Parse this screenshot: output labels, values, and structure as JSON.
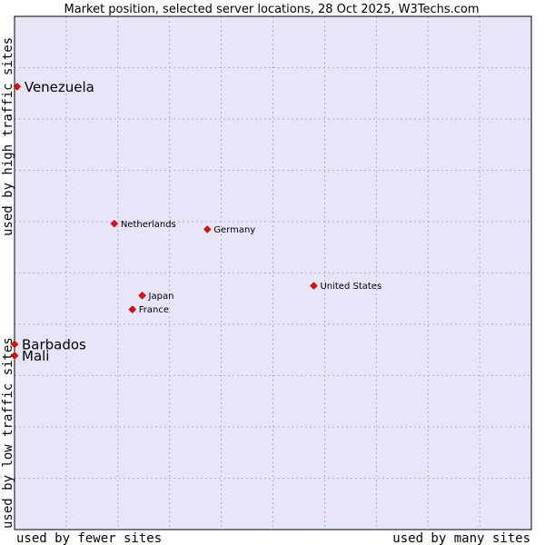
{
  "chart_data": {
    "type": "scatter",
    "title": "Market position, selected server locations, 28 Oct 2025, W3Techs.com",
    "xlabel_low": "used by fewer sites",
    "xlabel_high": "used by many sites",
    "ylabel_low": "used by low traffic sites",
    "ylabel_high": "used by high traffic sites",
    "xlim": [
      0,
      100
    ],
    "ylim": [
      0,
      100
    ],
    "grid": true,
    "colors": {
      "background": "#e6e6f8",
      "grid": "#a0a0b8",
      "point": "#ff0000",
      "border": "#000000"
    },
    "points": [
      {
        "label": "Venezuela",
        "x": 0.5,
        "y": 86.3,
        "emphasis": true
      },
      {
        "label": "Netherlands",
        "x": 19.3,
        "y": 59.6,
        "emphasis": false
      },
      {
        "label": "Germany",
        "x": 37.3,
        "y": 58.5,
        "emphasis": false
      },
      {
        "label": "United States",
        "x": 57.9,
        "y": 47.5,
        "emphasis": false
      },
      {
        "label": "Japan",
        "x": 24.7,
        "y": 45.6,
        "emphasis": false
      },
      {
        "label": "France",
        "x": 22.8,
        "y": 42.9,
        "emphasis": false
      },
      {
        "label": "Barbados",
        "x": 0.0,
        "y": 36.1,
        "emphasis": true
      },
      {
        "label": "Mali",
        "x": 0.0,
        "y": 33.9,
        "emphasis": true
      }
    ]
  }
}
